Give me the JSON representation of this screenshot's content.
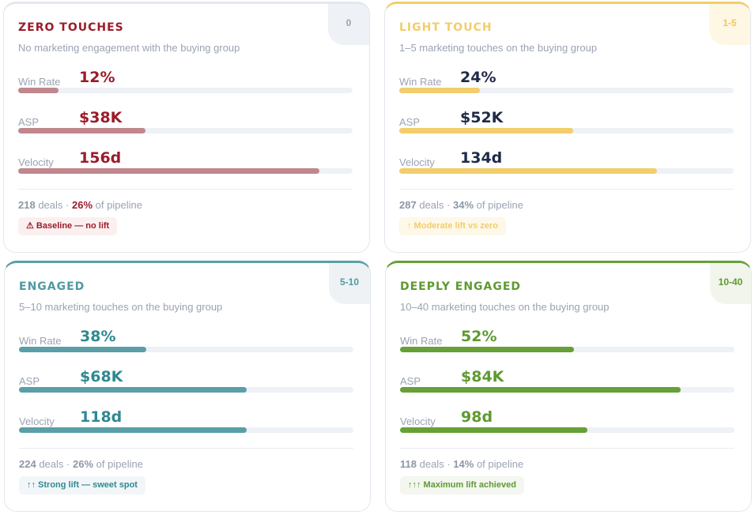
{
  "metric_labels": {
    "win_rate": "Win Rate",
    "asp": "ASP",
    "velocity": "Velocity"
  },
  "footer_words": {
    "deals": "deals",
    "sep": "·",
    "of_pipeline": "of pipeline"
  },
  "cards": [
    {
      "id": "zero-touches",
      "title": "ZERO TOUCHES",
      "range": "0",
      "subtitle": "No marketing engagement with the buying group",
      "win_rate": "12%",
      "win_rate_fill": 12,
      "asp": "$38K",
      "asp_fill": 38,
      "velocity": "156d",
      "velocity_fill": 90,
      "deals": "218",
      "pipeline": "26%",
      "badge": "⚠ Baseline — no lift",
      "colors": {
        "accent": "#9b1c2a",
        "value": "#9b1c2a",
        "bar": "#c0878d",
        "top": "#e3e7ee",
        "corner_bg": "#eef1f5",
        "corner_text": "#9aa3b3",
        "badge_bg": "#fbf0f0",
        "badge_text": "#9b1c2a",
        "pipeline": "#9b1c2a"
      }
    },
    {
      "id": "light-touch",
      "title": "LIGHT TOUCH",
      "range": "1-5",
      "subtitle": "1–5 marketing touches on the buying group",
      "win_rate": "24%",
      "win_rate_fill": 24,
      "asp": "$52K",
      "asp_fill": 52,
      "velocity": "134d",
      "velocity_fill": 77,
      "deals": "287",
      "pipeline": "34%",
      "badge": "↑ Moderate lift vs zero",
      "colors": {
        "accent": "#f2cd6b",
        "value": "#1f2a48",
        "bar": "#f2cd6b",
        "top": "#f2cd6b",
        "corner_bg": "#fdf7e4",
        "corner_text": "#f0c85a",
        "badge_bg": "#fdf8e8",
        "badge_text": "#f2cd6b",
        "pipeline": "#8d96a8"
      }
    },
    {
      "id": "engaged",
      "title": "ENGAGED",
      "range": "5-10",
      "subtitle": "5–10 marketing touches on the buying group",
      "win_rate": "38%",
      "win_rate_fill": 38,
      "asp": "$68K",
      "asp_fill": 68,
      "velocity": "118d",
      "velocity_fill": 68,
      "deals": "224",
      "pipeline": "26%",
      "badge": "↑↑ Strong lift — sweet spot",
      "colors": {
        "accent": "#4f9aa3",
        "value": "#2f8991",
        "bar": "#5a9fa7",
        "top": "#5a9fa7",
        "corner_bg": "#eef2f4",
        "corner_text": "#4f9aa3",
        "badge_bg": "#f2f6f8",
        "badge_text": "#2f8991",
        "pipeline": "#8d96a8"
      }
    },
    {
      "id": "deeply-engaged",
      "title": "DEEPLY ENGAGED",
      "range": "10-40",
      "subtitle": "10–40 marketing touches on the buying group",
      "win_rate": "52%",
      "win_rate_fill": 52,
      "asp": "$84K",
      "asp_fill": 84,
      "velocity": "98d",
      "velocity_fill": 56,
      "deals": "118",
      "pipeline": "14%",
      "badge": "↑↑↑ Maximum lift achieved",
      "colors": {
        "accent": "#5e9a30",
        "value": "#5e9a30",
        "bar": "#66a036",
        "top": "#66a036",
        "corner_bg": "#f1f5ec",
        "corner_text": "#5e9a30",
        "badge_bg": "#f3f7ef",
        "badge_text": "#5e9a30",
        "pipeline": "#8d96a8"
      }
    }
  ]
}
